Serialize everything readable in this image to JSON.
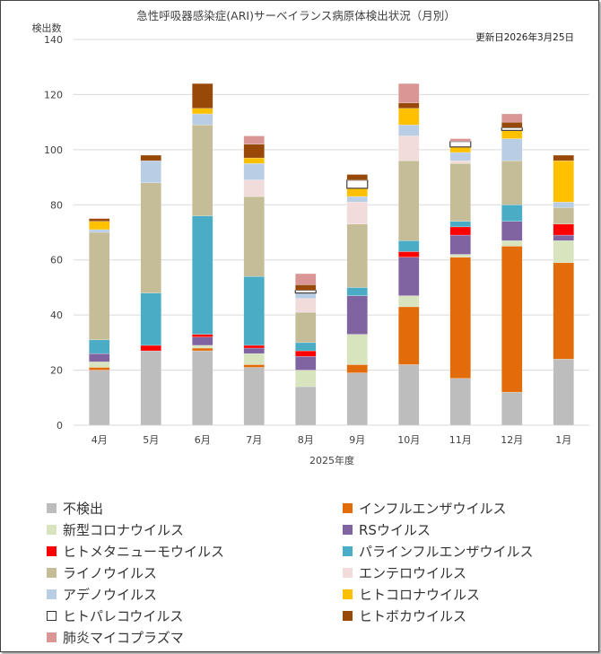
{
  "chart_data": {
    "type": "bar",
    "stacked": true,
    "title": "急性呼吸器感染症(ARI)サーベイランス病原体検出状況（月別）",
    "ylabel": "検出数",
    "xlabel": "2025年度",
    "annotation": "更新日2026年3月25日",
    "ylim": [
      0,
      140
    ],
    "yticks": [
      0,
      20,
      40,
      60,
      80,
      100,
      120,
      140
    ],
    "grid": true,
    "legend_position": "bottom",
    "categories": [
      "4月",
      "5月",
      "6月",
      "7月",
      "8月",
      "9月",
      "10月",
      "11月",
      "12月",
      "1月"
    ],
    "series": [
      {
        "name": "不検出",
        "color": "#bdbdbd",
        "values": [
          20,
          27,
          27,
          21,
          14,
          19,
          22,
          17,
          12,
          24
        ]
      },
      {
        "name": "インフルエンザウイルス",
        "color": "#e36c0a",
        "values": [
          1,
          0,
          1,
          1,
          0,
          3,
          21,
          44,
          53,
          35
        ]
      },
      {
        "name": "新型コロナウイルス",
        "color": "#d7e4bd",
        "values": [
          2,
          0,
          1,
          4,
          6,
          11,
          4,
          1,
          2,
          8
        ]
      },
      {
        "name": "RSウイルス",
        "color": "#8064a2",
        "values": [
          3,
          0,
          3,
          2,
          5,
          14,
          14,
          7,
          7,
          2
        ]
      },
      {
        "name": "ヒトメタニューモウイルス",
        "color": "#ff0000",
        "values": [
          0,
          2,
          1,
          1,
          2,
          0,
          2,
          3,
          0,
          4
        ]
      },
      {
        "name": "パラインフルエンザウイルス",
        "color": "#4bacc6",
        "values": [
          5,
          19,
          43,
          25,
          3,
          3,
          4,
          2,
          6,
          0
        ]
      },
      {
        "name": "ライノウイルス",
        "color": "#c4bd97",
        "values": [
          39,
          40,
          33,
          29,
          11,
          23,
          29,
          21,
          16,
          6
        ]
      },
      {
        "name": "エンテロウイルス",
        "color": "#f2dcdb",
        "values": [
          0,
          0,
          0,
          6,
          5,
          8,
          9,
          1,
          0,
          0
        ]
      },
      {
        "name": "アデノウイルス",
        "color": "#b9cde5",
        "values": [
          1,
          8,
          4,
          6,
          2,
          2,
          4,
          3,
          8,
          2
        ]
      },
      {
        "name": "ヒトコロナウイルス",
        "color": "#ffc000",
        "values": [
          3,
          0,
          2,
          2,
          0,
          3,
          6,
          2,
          3,
          15
        ]
      },
      {
        "name": "ヒトパレコウイルス",
        "color": "#ffffff",
        "values": [
          0,
          0,
          0,
          0,
          1,
          3,
          0,
          2,
          1,
          0
        ]
      },
      {
        "name": "ヒトボカウイルス",
        "color": "#984807",
        "values": [
          1,
          2,
          9,
          5,
          2,
          2,
          2,
          0,
          2,
          2
        ]
      },
      {
        "name": "肺炎マイコプラズマ",
        "color": "#d99694",
        "values": [
          0,
          0,
          0,
          3,
          4,
          0,
          7,
          1,
          3,
          0
        ]
      }
    ]
  }
}
